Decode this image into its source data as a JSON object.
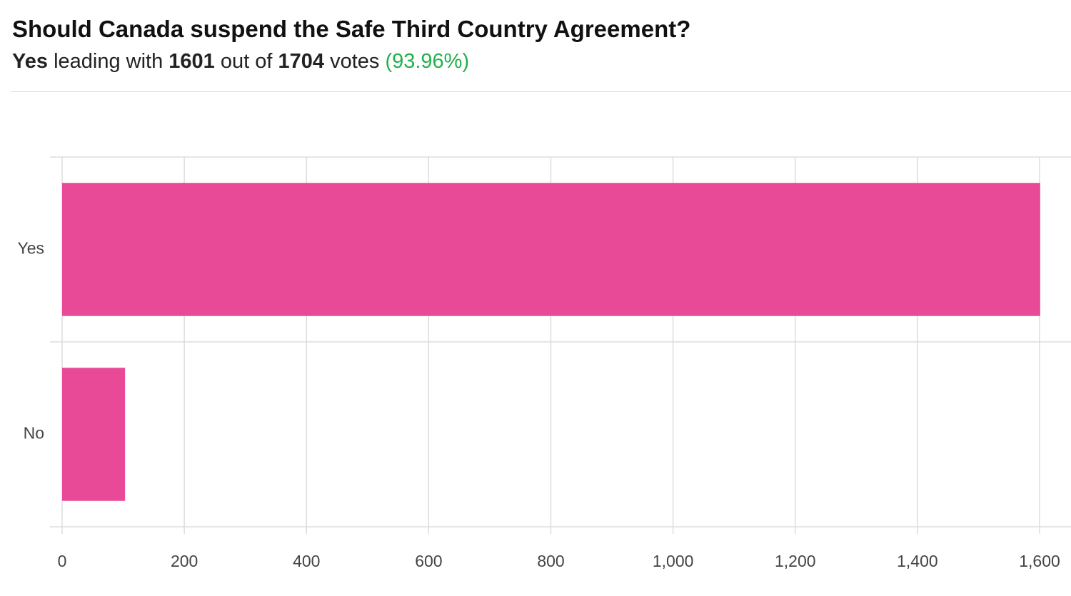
{
  "chart_data": {
    "type": "bar",
    "orientation": "horizontal",
    "title": "Should Canada suspend the Safe Third Country Agreement?",
    "subtitle": {
      "leader": "Yes",
      "text1": "leading with",
      "leader_votes": "1601",
      "text2": "out of",
      "total_votes": "1704",
      "text3": "votes",
      "percent": "(93.96%)"
    },
    "categories": [
      "Yes",
      "No"
    ],
    "values": [
      1601,
      103
    ],
    "color": "#e84a97",
    "xlim": [
      0,
      1600
    ],
    "xticks": [
      0,
      200,
      400,
      600,
      800,
      {
        "value": 1000,
        "label": "1,000"
      },
      {
        "value": 1200,
        "label": "1,200"
      },
      {
        "value": 1400,
        "label": "1,400"
      },
      {
        "value": 1600,
        "label": "1,600"
      }
    ],
    "grid": true
  }
}
